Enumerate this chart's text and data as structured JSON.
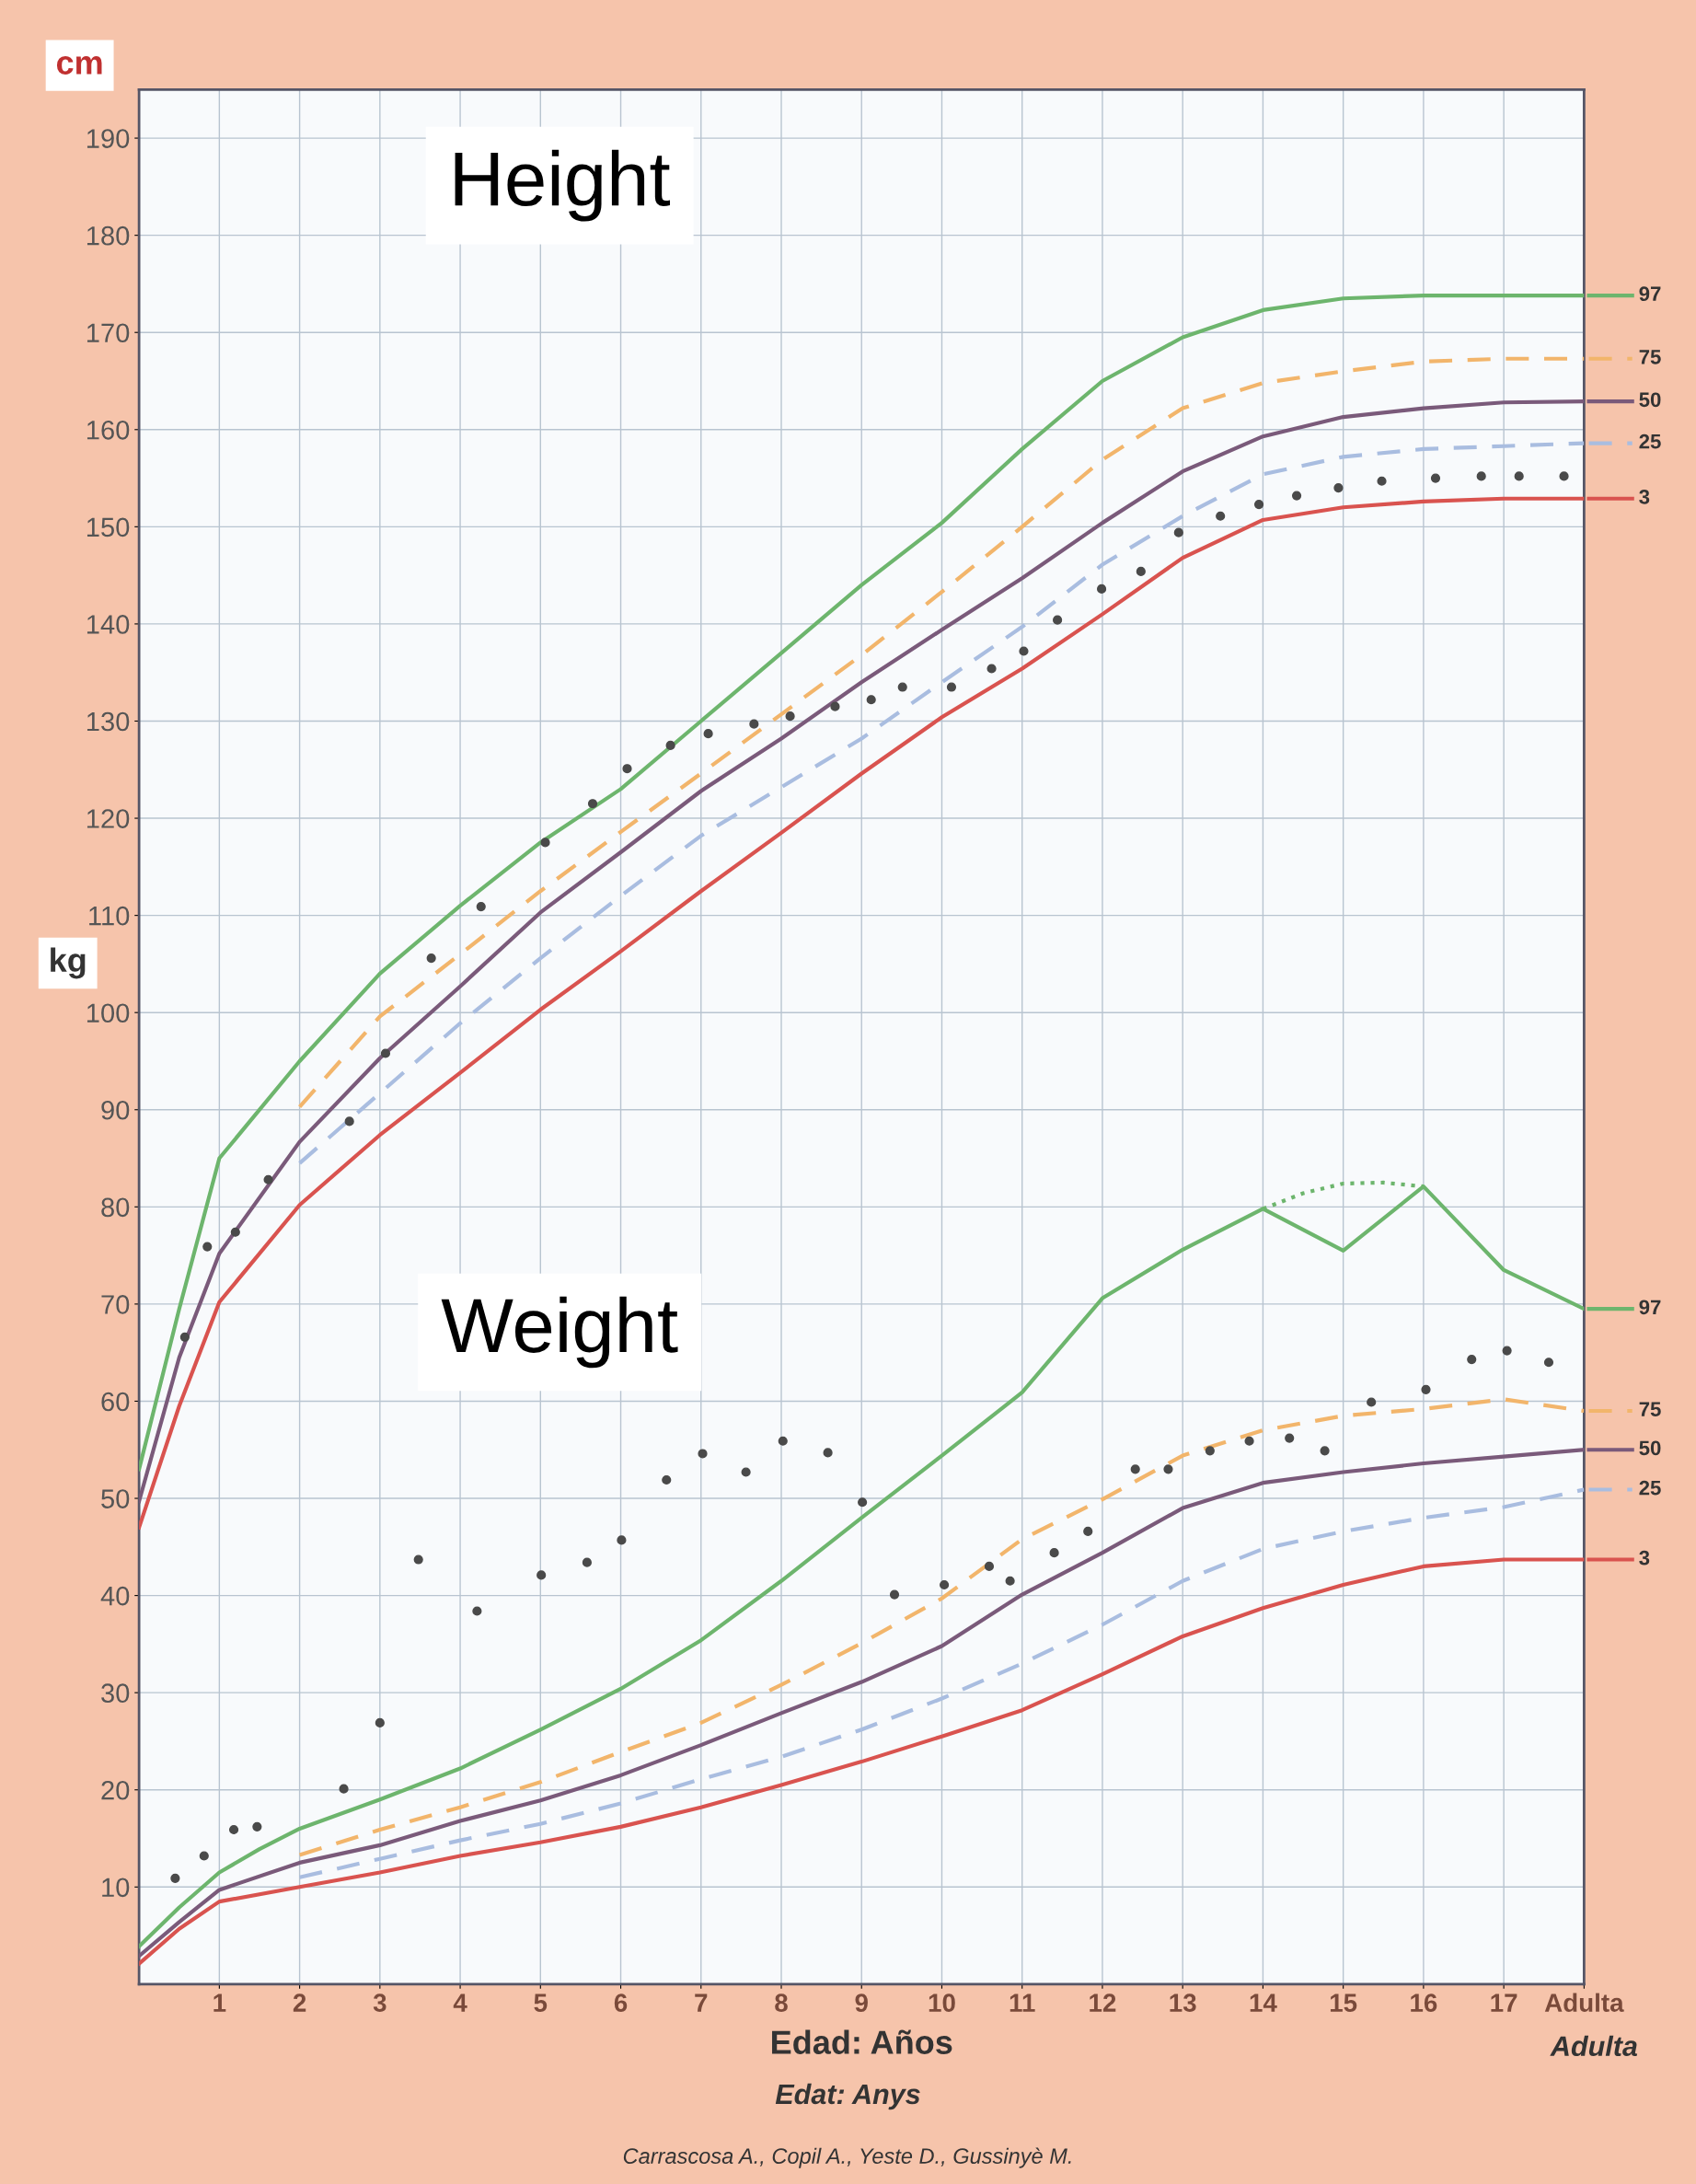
{
  "chart_data": {
    "type": "line",
    "xlabel": "Edad: Años",
    "annotations": [
      "Height",
      "Weight",
      "cm",
      "kg",
      "Edat: Anys",
      "Adulta",
      "Carrascosa A., Copil A., Yeste D., Gussinyè M."
    ],
    "xlim": [
      0,
      18
    ],
    "xticks": [
      1,
      2,
      3,
      4,
      5,
      6,
      7,
      8,
      9,
      10,
      11,
      12,
      13,
      14,
      15,
      16,
      17,
      {
        "value": 18,
        "label": "Adulta"
      }
    ],
    "ylim": [
      0,
      195
    ],
    "yticks": [
      10,
      20,
      30,
      40,
      50,
      60,
      70,
      80,
      90,
      100,
      110,
      120,
      130,
      140,
      150,
      160,
      170,
      180,
      190
    ],
    "grid": true,
    "legend": "right",
    "series": [
      {
        "name": "97",
        "color": "#6db56d",
        "line_style": "solid",
        "x": [
          0,
          0.5,
          1,
          2,
          3,
          4,
          5,
          6,
          7,
          8,
          9,
          10,
          11,
          12,
          13,
          14,
          15,
          16,
          17,
          18
        ],
        "values": [
          53,
          69.5,
          85,
          95,
          104,
          111,
          117.5,
          123,
          130,
          137,
          144,
          150.4,
          158,
          165,
          169.5,
          172.3,
          173.5,
          173.8,
          173.8,
          173.8
        ]
      },
      {
        "name": "75",
        "color": "#f2b56b",
        "line_style": "dashed",
        "x": [
          2,
          3,
          4,
          5,
          6,
          7,
          8,
          9,
          10,
          11,
          12,
          13,
          14,
          15,
          16,
          17,
          18
        ],
        "values": [
          90.3,
          99.6,
          106,
          112.5,
          118.6,
          124.6,
          130.7,
          136.8,
          143.3,
          150,
          156.9,
          162.2,
          164.8,
          166,
          167,
          167.3,
          167.3
        ]
      },
      {
        "name": "50",
        "color": "#7a5a7a",
        "line_style": "solid",
        "x": [
          0,
          0.5,
          1,
          2,
          3,
          4,
          5,
          6,
          7,
          8,
          9,
          10,
          11,
          12,
          13,
          14,
          15,
          16,
          17,
          18
        ],
        "values": [
          49.7,
          64.5,
          75.2,
          86.7,
          95.3,
          102.7,
          110.3,
          116.5,
          122.8,
          128.2,
          134,
          139.4,
          144.7,
          150.4,
          155.7,
          159.3,
          161.3,
          162.2,
          162.8,
          162.9
        ]
      },
      {
        "name": "25",
        "color": "#a9bde0",
        "line_style": "dashed",
        "x": [
          2,
          3,
          4,
          5,
          6,
          7,
          8,
          9,
          10,
          11,
          12,
          13,
          14,
          15,
          16,
          17,
          18
        ],
        "values": [
          84.5,
          91.7,
          98.9,
          105.6,
          112,
          118.2,
          123.2,
          128.2,
          134,
          139.7,
          146.1,
          151.1,
          155.4,
          157.2,
          158,
          158.3,
          158.6
        ]
      },
      {
        "name": "3",
        "color": "#d9534f",
        "line_style": "solid",
        "x": [
          0,
          0.5,
          1,
          2,
          3,
          4,
          5,
          6,
          7,
          8,
          9,
          10,
          11,
          12,
          13,
          14,
          15,
          16,
          17,
          18
        ],
        "values": [
          47,
          59.5,
          70.2,
          80.2,
          87.4,
          93.8,
          100.3,
          106.3,
          112.5,
          118.5,
          124.6,
          130.4,
          135.4,
          141,
          146.8,
          150.7,
          152,
          152.6,
          152.9,
          152.9
        ]
      },
      {
        "type": "scatter",
        "marker": "circle",
        "color": "#4a4a4a",
        "x": [
          0.57,
          0.85,
          1.2,
          1.61,
          2.62,
          3.07,
          3.64,
          4.26,
          5.06,
          5.65,
          6.08,
          6.62,
          7.09,
          7.66,
          8.11,
          8.67,
          9.12,
          9.51,
          10.12,
          10.62,
          11.02,
          11.44,
          11.99,
          12.48,
          12.95,
          13.47,
          13.95,
          14.42,
          14.94,
          15.48,
          16.15,
          16.72,
          17.19,
          17.75
        ],
        "values": [
          66.6,
          75.9,
          77.4,
          82.8,
          88.8,
          95.8,
          105.6,
          110.9,
          117.5,
          121.5,
          125.1,
          127.5,
          128.7,
          129.7,
          130.5,
          131.5,
          132.2,
          133.5,
          133.5,
          135.4,
          137.2,
          140.4,
          143.6,
          145.4,
          149.4,
          151.1,
          152.3,
          153.2,
          154,
          154.7,
          155,
          155.2,
          155.2,
          155.2
        ]
      },
      {
        "name": "97",
        "color": "#6db56d",
        "line_style": "solid",
        "x": [
          0,
          0.5,
          1,
          1.5,
          2,
          3,
          4,
          5,
          6,
          7,
          8,
          9,
          10,
          11,
          12,
          13,
          14,
          15,
          16,
          17,
          18
        ],
        "values": [
          3.9,
          7.9,
          11.5,
          13.9,
          16,
          19,
          22.2,
          26.2,
          30.4,
          35.4,
          41.5,
          48,
          54.4,
          60.9,
          70.6,
          75.6,
          79.8,
          75.5,
          82.1,
          73.5,
          69.5
        ]
      },
      {
        "color": "#6db56d",
        "line_style": "dotted",
        "x": [
          14,
          14.5,
          15,
          15.5,
          16
        ],
        "values": [
          79.8,
          81.4,
          82.4,
          82.5,
          82.1
        ]
      },
      {
        "name": "75",
        "color": "#f2b56b",
        "line_style": "dashed",
        "x": [
          2,
          3,
          4,
          5,
          6,
          7,
          8,
          9,
          10,
          11,
          12,
          13,
          14,
          15,
          16,
          17,
          18
        ],
        "values": [
          13.3,
          15.9,
          18.2,
          20.8,
          23.9,
          26.9,
          30.8,
          35.1,
          39.7,
          45.8,
          49.9,
          54.4,
          57,
          58.5,
          59.2,
          60.2,
          59
        ]
      },
      {
        "name": "50",
        "color": "#7a5a7a",
        "line_style": "solid",
        "x": [
          0,
          0.5,
          1,
          2,
          3,
          4,
          5,
          6,
          7,
          8,
          9,
          10,
          11,
          12,
          13,
          14,
          15,
          16,
          17,
          18
        ],
        "values": [
          2.9,
          6.4,
          9.7,
          12.5,
          14.3,
          16.8,
          18.9,
          21.5,
          24.6,
          27.9,
          31.1,
          34.8,
          40.1,
          44.4,
          49,
          51.6,
          52.7,
          53.6,
          54.3,
          55
        ]
      },
      {
        "name": "25",
        "color": "#a9bde0",
        "line_style": "dashed",
        "x": [
          2,
          3,
          4,
          5,
          6,
          7,
          8,
          9,
          10,
          11,
          12,
          13,
          14,
          15,
          16,
          17,
          18
        ],
        "values": [
          11,
          12.9,
          14.8,
          16.5,
          18.6,
          21.1,
          23.4,
          26.2,
          29.4,
          33,
          37,
          41.5,
          44.8,
          46.6,
          48,
          49.1,
          50.9
        ]
      },
      {
        "name": "3",
        "color": "#d9534f",
        "line_style": "solid",
        "x": [
          0,
          0.5,
          1,
          2,
          3,
          4,
          5,
          6,
          7,
          8,
          9,
          10,
          11,
          12,
          13,
          14,
          15,
          16,
          17,
          18
        ],
        "values": [
          2.1,
          5.7,
          8.5,
          10,
          11.5,
          13.2,
          14.6,
          16.2,
          18.2,
          20.5,
          22.9,
          25.5,
          28.2,
          31.9,
          35.8,
          38.7,
          41.1,
          43,
          43.7,
          43.7
        ]
      },
      {
        "type": "scatter",
        "marker": "circle",
        "color": "#4a4a4a",
        "x": [
          0.45,
          0.81,
          1.18,
          1.47,
          2.55,
          3.0,
          3.48,
          4.21,
          5.01,
          5.58,
          6.01,
          6.57,
          7.02,
          7.56,
          8.02,
          8.58,
          9.01,
          9.41,
          10.03,
          10.59,
          10.85,
          11.4,
          11.82,
          12.41,
          12.82,
          13.34,
          13.83,
          14.33,
          14.77,
          15.35,
          16.03,
          16.6,
          17.04,
          17.56
        ],
        "values": [
          10.9,
          13.2,
          15.9,
          16.2,
          20.1,
          26.9,
          43.7,
          38.4,
          42.1,
          43.4,
          45.7,
          51.9,
          54.6,
          52.7,
          55.9,
          54.7,
          49.6,
          40.1,
          41.1,
          43,
          41.5,
          44.4,
          46.6,
          53,
          53,
          54.9,
          55.9,
          56.2,
          54.9,
          59.9,
          61.2,
          64.3,
          65.2,
          64
        ]
      }
    ]
  }
}
